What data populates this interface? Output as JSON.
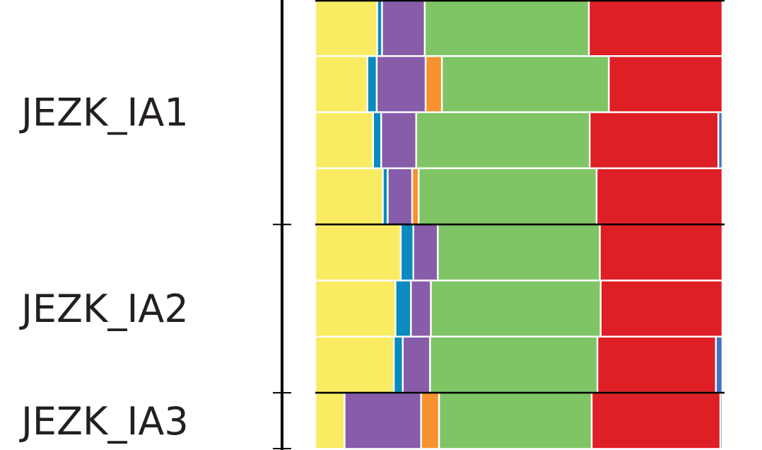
{
  "chart_data": {
    "type": "bar",
    "orientation": "horizontal-stacked-100",
    "colors": [
      "#f9ec62",
      "#0a8bbd",
      "#875ca9",
      "#f7922f",
      "#7fc566",
      "#df1f26",
      "#4472c4"
    ],
    "groups": [
      {
        "label": "JEZK_IA1",
        "rows": [
          [
            0.152,
            0.012,
            0.105,
            0.0,
            0.403,
            0.328,
            0.0
          ],
          [
            0.128,
            0.023,
            0.12,
            0.04,
            0.41,
            0.279,
            0.0
          ],
          [
            0.142,
            0.02,
            0.086,
            0.0,
            0.426,
            0.316,
            0.01
          ],
          [
            0.166,
            0.012,
            0.06,
            0.016,
            0.437,
            0.309,
            0.0
          ]
        ]
      },
      {
        "label": "JEZK_IA2",
        "rows": [
          [
            0.21,
            0.031,
            0.06,
            0.0,
            0.398,
            0.301,
            0.0
          ],
          [
            0.197,
            0.038,
            0.049,
            0.0,
            0.417,
            0.299,
            0.0
          ],
          [
            0.193,
            0.022,
            0.067,
            0.0,
            0.411,
            0.291,
            0.016
          ]
        ]
      },
      {
        "label": "JEZK_IA3",
        "rows": [
          [
            0.072,
            0.0,
            0.188,
            0.044,
            0.375,
            0.316,
            0.005
          ]
        ]
      }
    ]
  }
}
